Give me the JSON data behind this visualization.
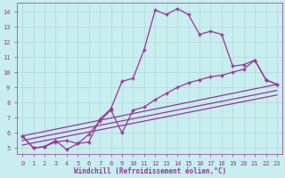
{
  "xlabel": "Windchill (Refroidissement éolien,°C)",
  "background_color": "#c8eef0",
  "grid_color": "#b0d8d8",
  "line_color": "#993399",
  "xlim": [
    -0.5,
    23.5
  ],
  "ylim": [
    4.6,
    14.6
  ],
  "xticks": [
    0,
    1,
    2,
    3,
    4,
    5,
    6,
    7,
    8,
    9,
    10,
    11,
    12,
    13,
    14,
    15,
    16,
    17,
    18,
    19,
    20,
    21,
    22,
    23
  ],
  "yticks": [
    5,
    6,
    7,
    8,
    9,
    10,
    11,
    12,
    13,
    14
  ],
  "line1_x": [
    0,
    1,
    2,
    3,
    4,
    5,
    6,
    7,
    8,
    9,
    10,
    11,
    12,
    13,
    14,
    15,
    16,
    17,
    18,
    19,
    20,
    21,
    22,
    23
  ],
  "line1_y": [
    5.8,
    5.0,
    5.1,
    5.5,
    4.9,
    5.3,
    5.4,
    6.9,
    7.6,
    9.4,
    9.6,
    11.5,
    14.1,
    13.8,
    14.2,
    13.8,
    12.5,
    12.7,
    12.5,
    10.4,
    10.5,
    10.8,
    9.5,
    9.2
  ],
  "line2_x": [
    0,
    1,
    2,
    3,
    4,
    5,
    6,
    7,
    8,
    9,
    10,
    11,
    12,
    13,
    14,
    15,
    16,
    17,
    18,
    19,
    20,
    21,
    22,
    23
  ],
  "line2_y": [
    5.8,
    5.0,
    5.1,
    5.4,
    5.5,
    5.3,
    5.9,
    6.8,
    7.5,
    6.0,
    7.5,
    7.7,
    8.2,
    8.6,
    9.0,
    9.3,
    9.5,
    9.7,
    9.8,
    10.0,
    10.2,
    10.8,
    9.5,
    9.2
  ],
  "line3_x": [
    0,
    23
  ],
  "line3_y": [
    5.8,
    9.2
  ],
  "line4_x": [
    0,
    23
  ],
  "line4_y": [
    5.5,
    8.8
  ],
  "line5_x": [
    0,
    23
  ],
  "line5_y": [
    5.2,
    8.5
  ]
}
